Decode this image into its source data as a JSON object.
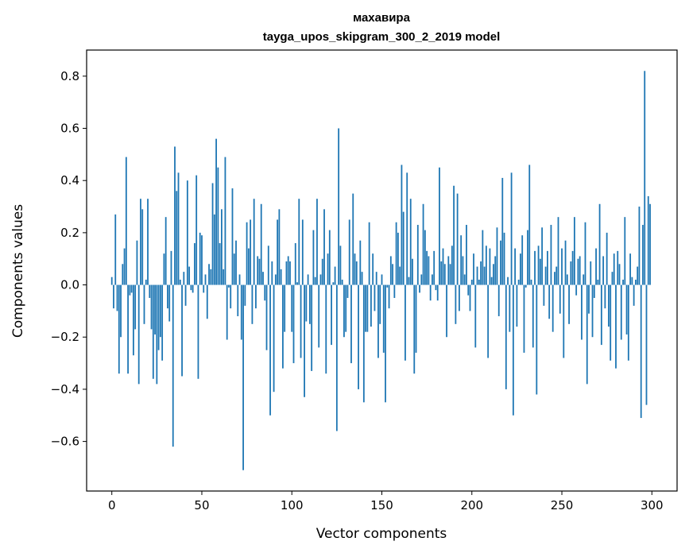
{
  "chart_data": {
    "type": "bar",
    "title": "махавира",
    "subtitle": "tayga_upos_skipgram_300_2_2019 model",
    "xlabel": "Vector components",
    "ylabel": "Components values",
    "xlim": [
      -14,
      314
    ],
    "ylim": [
      -0.79,
      0.9
    ],
    "xticks": [
      0,
      50,
      100,
      150,
      200,
      250,
      300
    ],
    "yticks": [
      -0.6,
      -0.4,
      -0.2,
      0.0,
      0.2,
      0.4,
      0.6,
      0.8
    ],
    "ytick_labels": [
      "−0.6",
      "−0.4",
      "−0.2",
      "0.0",
      "0.2",
      "0.4",
      "0.6",
      "0.8"
    ],
    "bar_color": "#1f77b4",
    "grid": false,
    "legend": "none",
    "x": "integer component indices 0–299 (one bar per index)",
    "values": [
      0.03,
      -0.09,
      0.27,
      -0.1,
      -0.34,
      -0.2,
      0.08,
      0.14,
      0.49,
      -0.34,
      -0.04,
      -0.03,
      -0.27,
      -0.17,
      0.17,
      -0.38,
      0.33,
      0.29,
      -0.15,
      0.02,
      0.33,
      -0.05,
      -0.17,
      -0.36,
      -0.19,
      -0.38,
      -0.25,
      -0.2,
      -0.29,
      0.12,
      0.26,
      -0.09,
      -0.14,
      0.13,
      -0.62,
      0.53,
      0.36,
      0.43,
      0.02,
      -0.35,
      0.05,
      -0.08,
      0.4,
      0.07,
      -0.02,
      -0.03,
      0.16,
      0.42,
      -0.36,
      0.2,
      0.19,
      -0.03,
      0.04,
      -0.13,
      0.08,
      0.06,
      0.39,
      0.27,
      0.56,
      0.45,
      0.16,
      0.29,
      0.06,
      0.49,
      -0.21,
      -0.01,
      -0.09,
      0.37,
      0.12,
      0.17,
      -0.12,
      0.04,
      -0.21,
      -0.71,
      -0.08,
      0.24,
      0.14,
      0.25,
      -0.15,
      0.33,
      -0.09,
      0.11,
      0.1,
      0.31,
      0.05,
      -0.06,
      -0.25,
      0.15,
      -0.5,
      0.09,
      -0.41,
      0.04,
      0.25,
      0.29,
      0.06,
      -0.32,
      -0.18,
      0.09,
      0.11,
      0.09,
      -0.18,
      -0.3,
      0.16,
      0.01,
      0.33,
      -0.28,
      0.25,
      -0.43,
      -0.14,
      0.04,
      -0.15,
      -0.33,
      0.21,
      0.03,
      0.33,
      -0.24,
      0.04,
      0.1,
      0.29,
      -0.34,
      0.12,
      0.21,
      -0.23,
      0.01,
      0.07,
      -0.56,
      0.6,
      0.15,
      0.02,
      -0.2,
      -0.18,
      -0.05,
      0.25,
      -0.3,
      0.35,
      0.12,
      0.09,
      -0.4,
      0.17,
      0.05,
      -0.45,
      -0.18,
      -0.18,
      0.24,
      -0.16,
      0.12,
      -0.1,
      0.05,
      -0.28,
      -0.15,
      0.04,
      -0.26,
      -0.45,
      -0.01,
      -0.09,
      0.11,
      0.08,
      -0.05,
      0.24,
      0.2,
      0.07,
      0.46,
      0.28,
      -0.29,
      0.43,
      0.03,
      0.33,
      0.1,
      -0.34,
      -0.26,
      0.23,
      -0.03,
      0.04,
      0.31,
      0.21,
      0.13,
      0.11,
      -0.06,
      0.04,
      0.13,
      -0.02,
      -0.06,
      0.45,
      0.09,
      0.14,
      0.08,
      -0.2,
      0.11,
      0.08,
      0.15,
      0.38,
      -0.15,
      0.35,
      -0.1,
      0.19,
      0.11,
      0.04,
      0.23,
      -0.04,
      -0.1,
      0.02,
      0.12,
      -0.24,
      0.07,
      0.02,
      0.09,
      0.21,
      0.07,
      0.15,
      -0.28,
      0.14,
      0.03,
      0.08,
      0.11,
      0.22,
      -0.12,
      0.17,
      0.41,
      0.2,
      -0.4,
      0.03,
      -0.18,
      0.43,
      -0.5,
      0.14,
      -0.16,
      0.02,
      0.12,
      0.19,
      -0.26,
      -0.01,
      0.21,
      0.46,
      0.02,
      -0.24,
      0.13,
      -0.42,
      0.15,
      0.1,
      0.22,
      -0.08,
      0.07,
      0.13,
      -0.13,
      0.23,
      -0.18,
      0.05,
      0.07,
      0.26,
      -0.11,
      0.14,
      -0.28,
      0.17,
      0.04,
      -0.15,
      0.09,
      0.13,
      0.26,
      -0.04,
      0.1,
      0.11,
      -0.21,
      0.04,
      0.24,
      -0.38,
      -0.11,
      0.09,
      -0.2,
      -0.05,
      0.14,
      0.02,
      0.31,
      -0.23,
      0.11,
      -0.09,
      0.2,
      -0.16,
      -0.29,
      0.05,
      0.12,
      -0.32,
      0.13,
      0.08,
      -0.21,
      0.02,
      0.26,
      -0.19,
      -0.29,
      0.12,
      0.03,
      -0.08,
      0.02,
      0.07,
      0.3,
      -0.51,
      0.23,
      0.82,
      -0.46,
      0.34,
      0.31
    ]
  }
}
